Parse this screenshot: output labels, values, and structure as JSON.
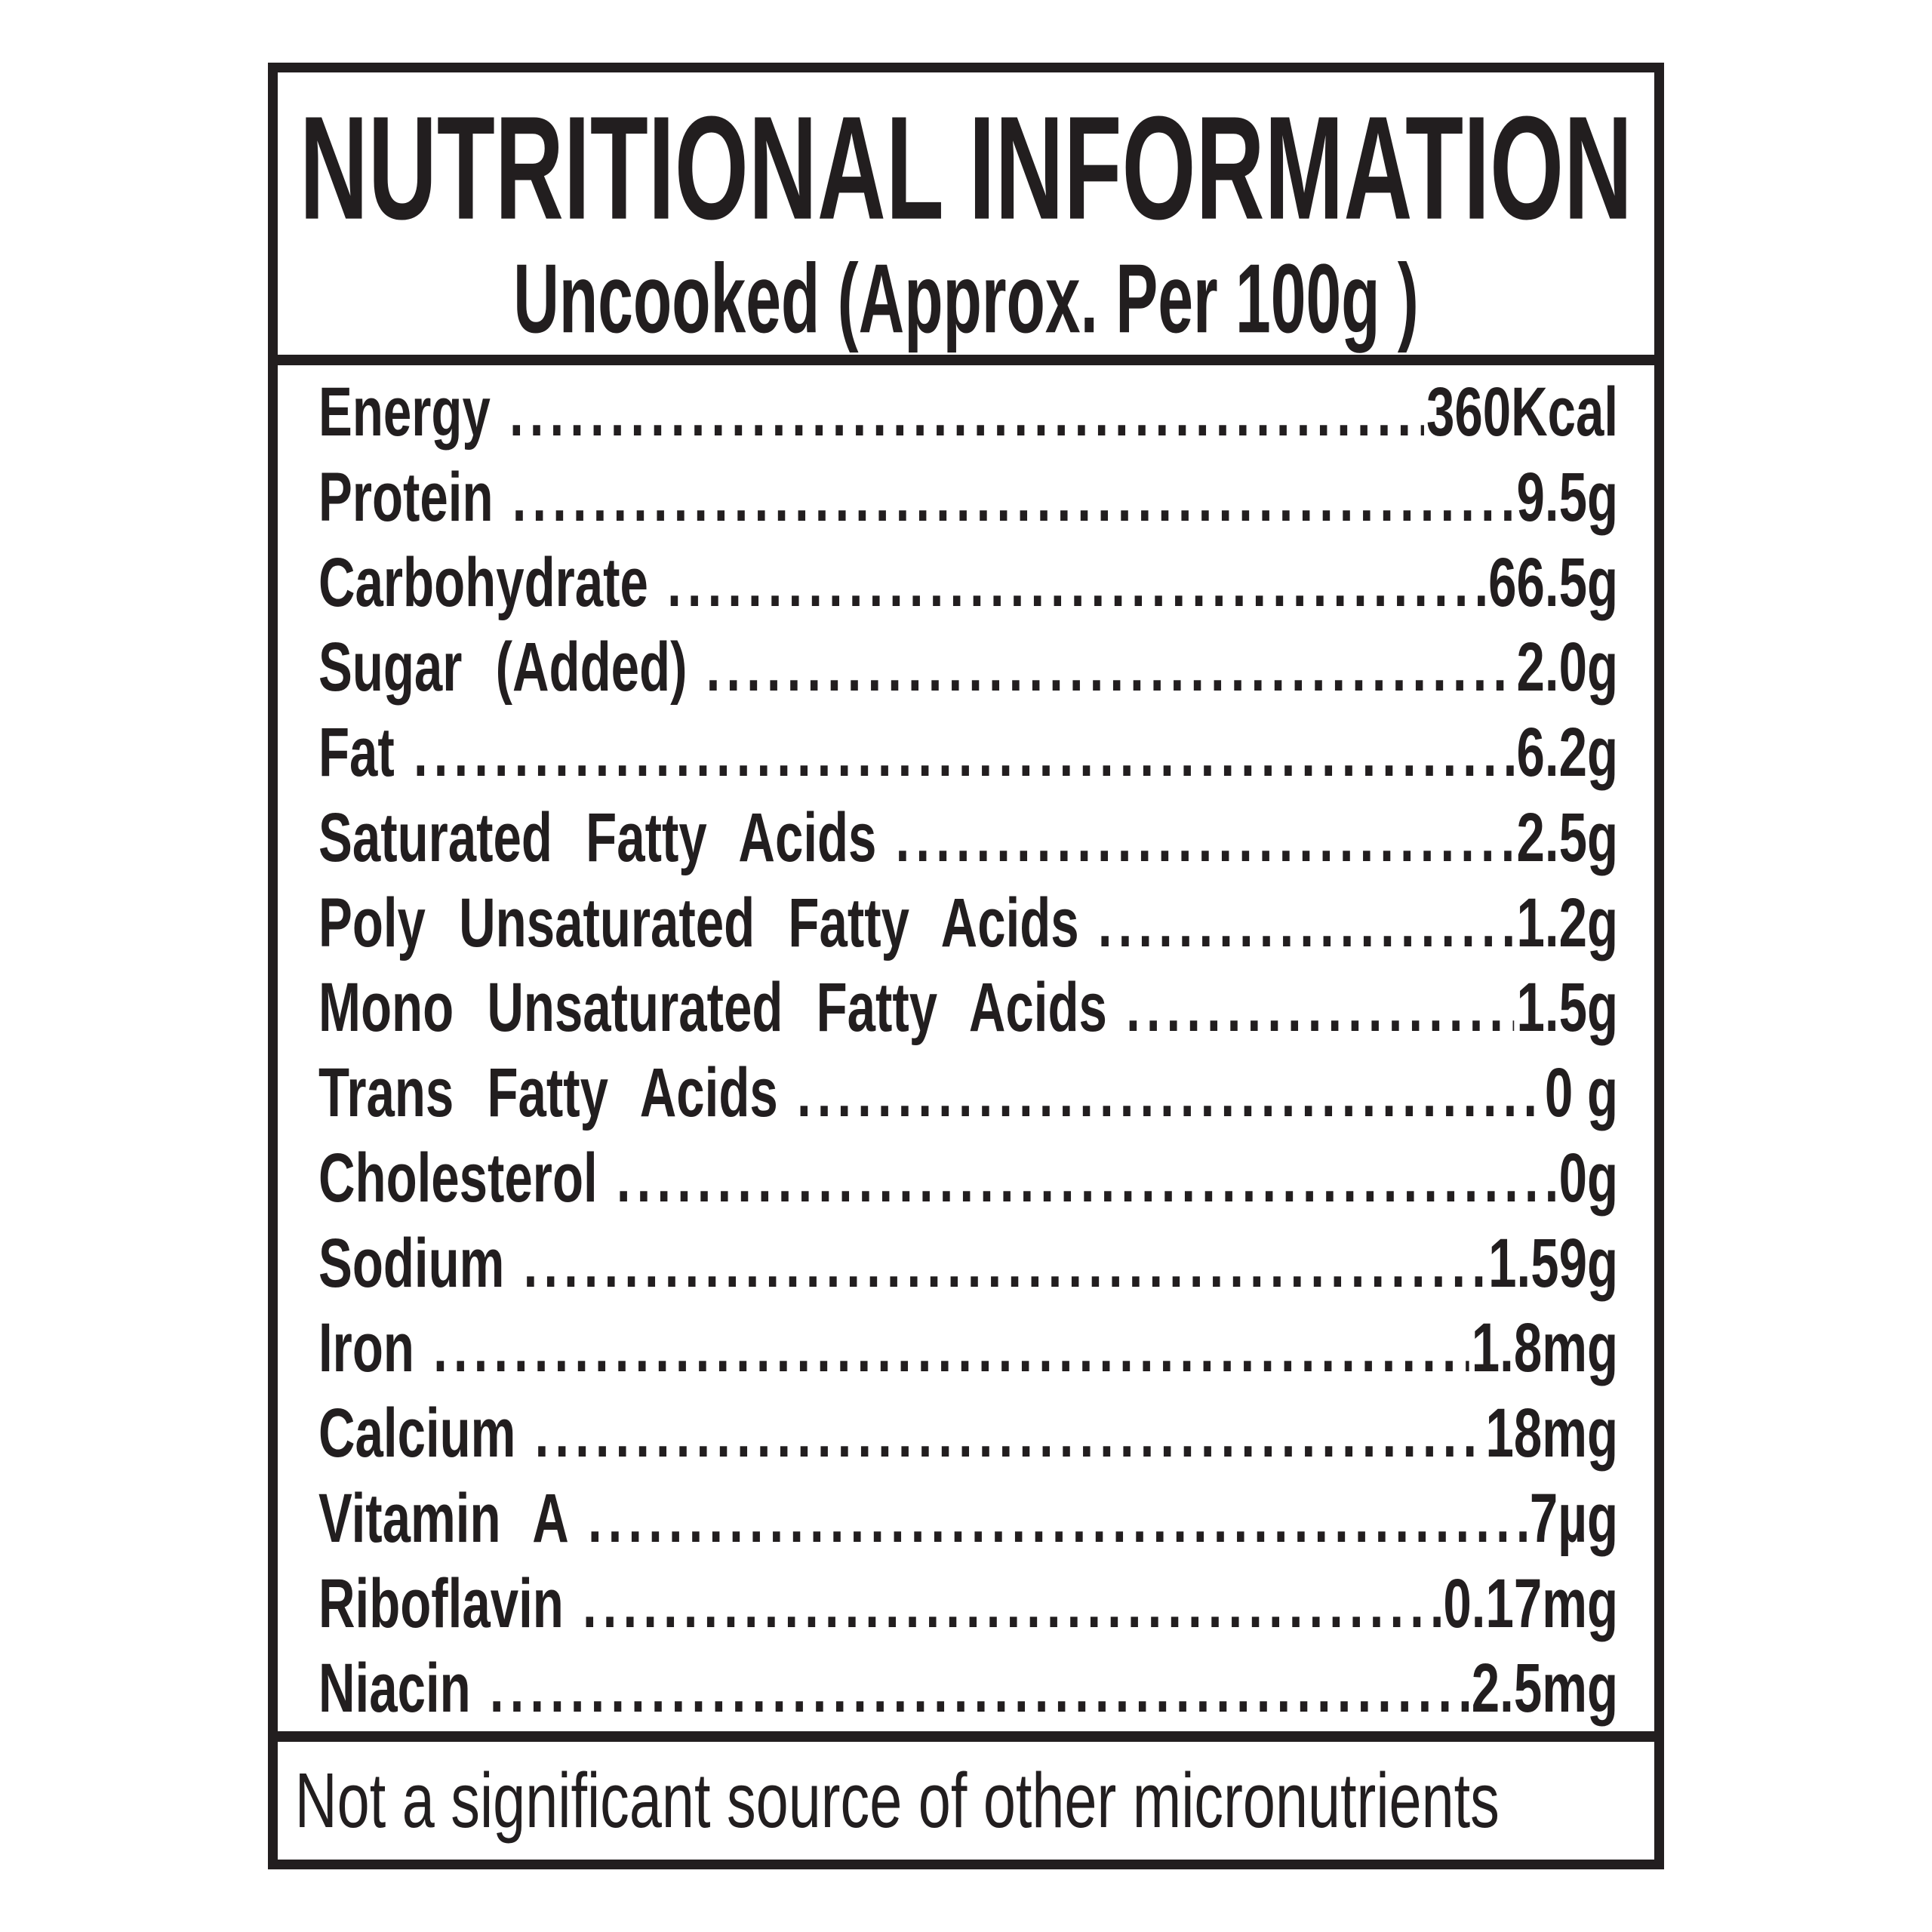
{
  "header": {
    "title": "NUTRITIONAL INFORMATION",
    "subtitle": "Uncooked (Approx. Per 100g )"
  },
  "rows": [
    {
      "label": "Energy",
      "value": "360Kcal"
    },
    {
      "label": "Protein",
      "value": "9.5g"
    },
    {
      "label": "Carbohydrate",
      "value": "66.5g"
    },
    {
      "label": "Sugar (Added)",
      "value": "2.0g"
    },
    {
      "label": "Fat",
      "value": "6.2g"
    },
    {
      "label": "Saturated Fatty Acids",
      "value": "2.5g"
    },
    {
      "label": "Poly Unsaturated Fatty Acids",
      "value": "1.2g"
    },
    {
      "label": "Mono Unsaturated Fatty Acids",
      "value": "1.5g"
    },
    {
      "label": "Trans Fatty Acids",
      "value": "0 g"
    },
    {
      "label": "Cholesterol",
      "value": "0g"
    },
    {
      "label": "Sodium",
      "value": "1.59g"
    },
    {
      "label": "Iron",
      "value": "1.8mg"
    },
    {
      "label": "Calcium",
      "value": "18mg"
    },
    {
      "label": "Vitamin A",
      "value": "7µg"
    },
    {
      "label": "Riboflavin",
      "value": "0.17mg"
    },
    {
      "label": "Niacin",
      "value": "2.5mg"
    }
  ],
  "leader_dots": "..........................................................................................",
  "footer": {
    "note": "Not a significant source of other micronutrients"
  },
  "colors": {
    "ink": "#221e1f",
    "background": "#ffffff"
  }
}
